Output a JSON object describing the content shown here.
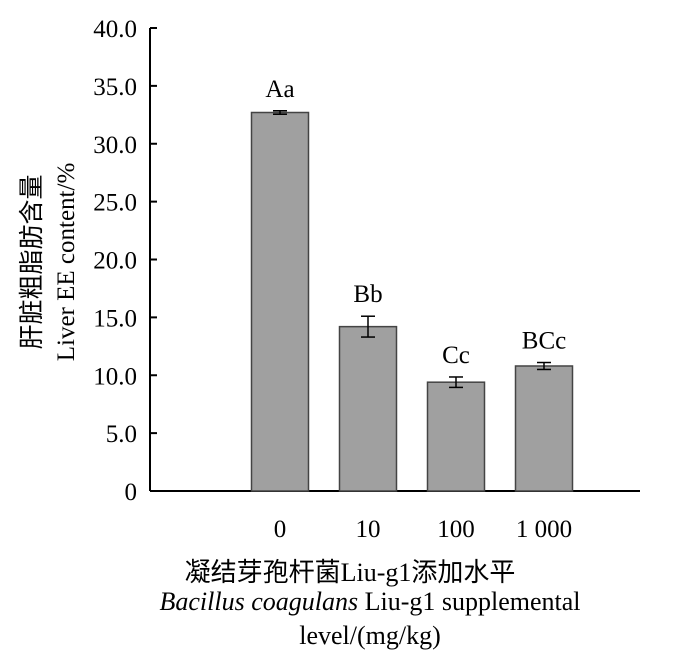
{
  "chart_data": {
    "type": "bar",
    "categories": [
      "0",
      "10",
      "100",
      "1 000"
    ],
    "values": [
      32.7,
      14.2,
      9.4,
      10.8
    ],
    "errors": [
      0.15,
      0.9,
      0.45,
      0.3
    ],
    "bar_labels": [
      "Aa",
      "Bb",
      "Cc",
      "BCc"
    ],
    "ylabel_cn": "肝脏粗脂肪含量",
    "ylabel_en": "Liver EE content/%",
    "xlabel_cn": "凝结芽孢杆菌Liu-g1添加水平",
    "xlabel_en_species": "Bacillus coagulans",
    "xlabel_en_rest": " Liu-g1 supplemental",
    "xlabel_en_line2": "level/(mg/kg)",
    "ylim": [
      0,
      40
    ],
    "yticks": [
      "0",
      "5.0",
      "10.0",
      "15.0",
      "20.0",
      "25.0",
      "30.0",
      "35.0",
      "40.0"
    ],
    "bar_color": "#a0a0a0",
    "grid": false
  }
}
